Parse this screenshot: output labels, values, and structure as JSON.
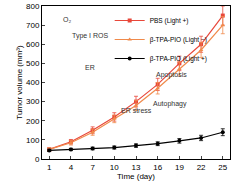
{
  "chart_data": {
    "type": "line",
    "x_label": "Time (day)",
    "y_label": "Tumor volume (mm³)",
    "x": [
      1,
      4,
      7,
      10,
      13,
      16,
      19,
      22,
      25
    ],
    "series": [
      {
        "name": "PBS (Light +)",
        "color": "#e8473a",
        "marker": "square",
        "values": [
          50,
          90,
          150,
          220,
          300,
          390,
          500,
          600,
          750
        ],
        "errors": [
          8,
          12,
          18,
          22,
          28,
          32,
          38,
          42,
          50
        ]
      },
      {
        "name": "β-TPA-PIO (Light −)",
        "color": "#f08a4b",
        "marker": "triangle-up",
        "values": [
          50,
          85,
          140,
          210,
          280,
          370,
          470,
          570,
          700
        ],
        "errors": [
          8,
          12,
          16,
          20,
          26,
          30,
          36,
          40,
          45
        ]
      },
      {
        "name": "β-TPA-PIO (Light +)",
        "color": "#000000",
        "marker": "circle",
        "values": [
          45,
          50,
          55,
          60,
          70,
          80,
          95,
          110,
          140
        ],
        "errors": [
          6,
          6,
          7,
          8,
          9,
          10,
          12,
          14,
          18
        ]
      }
    ],
    "xlim": [
      0,
      26
    ],
    "xticks": [
      1,
      4,
      7,
      10,
      13,
      16,
      19,
      22,
      25
    ],
    "ylim": [
      0,
      800
    ],
    "yticks": [
      0,
      100,
      200,
      300,
      400,
      500,
      600,
      700,
      800
    ],
    "annotations": [
      "O₂",
      "Type I ROS",
      "ER",
      "ER stress",
      "Apoptosis",
      "Autophagy"
    ],
    "grid": false,
    "legend": "top"
  }
}
